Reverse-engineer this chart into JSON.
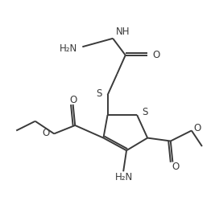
{
  "bg_color": "#ffffff",
  "line_color": "#3a3a3a",
  "line_width": 1.4,
  "font_size": 8.5,
  "fig_width": 2.62,
  "fig_height": 2.65,
  "dpi": 100,
  "xlim": [
    0,
    10
  ],
  "ylim": [
    0,
    10
  ]
}
